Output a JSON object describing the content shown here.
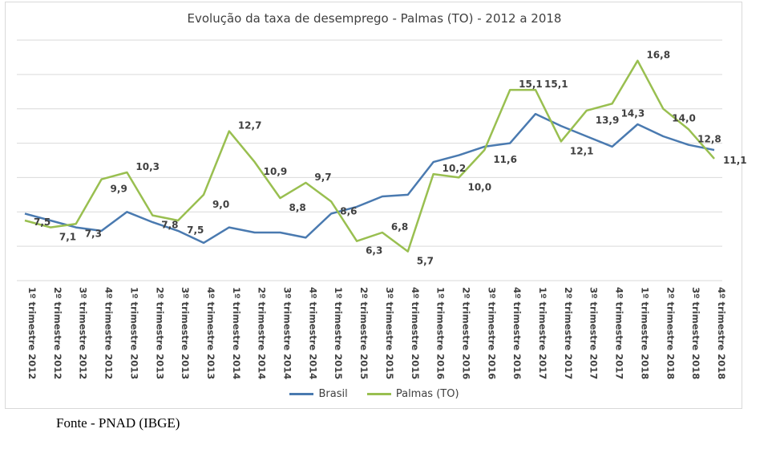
{
  "source_note": "Fonte - PNAD (IBGE)",
  "colors": {
    "brasil": "#4a7ab0",
    "palmas": "#99bf50",
    "grid": "#d9d9d9",
    "text": "#404040"
  },
  "chart_data": {
    "type": "line",
    "title": "Evolução da taxa de desemprego - Palmas (TO) - 2012 a 2018",
    "xlabel": "",
    "ylabel": "",
    "ylim": [
      4,
      18
    ],
    "grid": true,
    "y_ticks_labeled": false,
    "legend_position": "bottom",
    "categories": [
      "1º trimestre 2012",
      "2º trimestre 2012",
      "3º trimestre 2012",
      "4º trimestre 2012",
      "1º trimestre 2013",
      "2º trimestre 2013",
      "3º trimestre 2013",
      "4º trimestre 2013",
      "1º trimestre 2014",
      "2º trimestre 2014",
      "3º trimestre 2014",
      "4º trimestre 2014",
      "1º trimestre 2015",
      "2º trimestre 2015",
      "3º trimestre 2015",
      "4º trimestre 2015",
      "1º trimestre 2016",
      "2º trimestre 2016",
      "3º trimestre 2016",
      "4º trimestre 2016",
      "1º trimestre 2017",
      "2º trimestre 2017",
      "3º trimestre 2017",
      "4º trimestre 2017",
      "1º trimestre 2018",
      "2º trimestre 2018",
      "3º trimestre 2018",
      "4º trimestre 2018"
    ],
    "series": [
      {
        "name": "Brasil",
        "values": [
          7.9,
          7.5,
          7.1,
          6.9,
          8.0,
          7.4,
          6.9,
          6.2,
          7.1,
          6.8,
          6.8,
          6.5,
          7.9,
          8.3,
          8.9,
          9.0,
          10.9,
          11.3,
          11.8,
          12.0,
          13.7,
          13.0,
          12.4,
          11.8,
          13.1,
          12.4,
          11.9,
          11.6
        ],
        "show_labels": false
      },
      {
        "name": "Palmas (TO)",
        "values": [
          7.5,
          7.1,
          7.3,
          9.9,
          10.3,
          7.8,
          7.5,
          9.0,
          12.7,
          10.9,
          8.8,
          9.7,
          8.6,
          6.3,
          6.8,
          5.7,
          10.2,
          10.0,
          11.6,
          15.1,
          15.1,
          12.1,
          13.9,
          14.3,
          16.8,
          14.0,
          12.8,
          11.1
        ],
        "data_labels": [
          "7,5",
          "7,1",
          "7,3",
          "9,9",
          "10,3",
          "7,8",
          "7,5",
          "9,0",
          "12,7",
          "10,9",
          "8,8",
          "9,7",
          "8,6",
          "6,3",
          "6,8",
          "5,7",
          "10,2",
          "10,0",
          "11,6",
          "15,1",
          "15,1",
          "12,1",
          "13,9",
          "14,3",
          "16,8",
          "14,0",
          "12,8",
          "11,1"
        ],
        "show_labels": true
      }
    ]
  }
}
